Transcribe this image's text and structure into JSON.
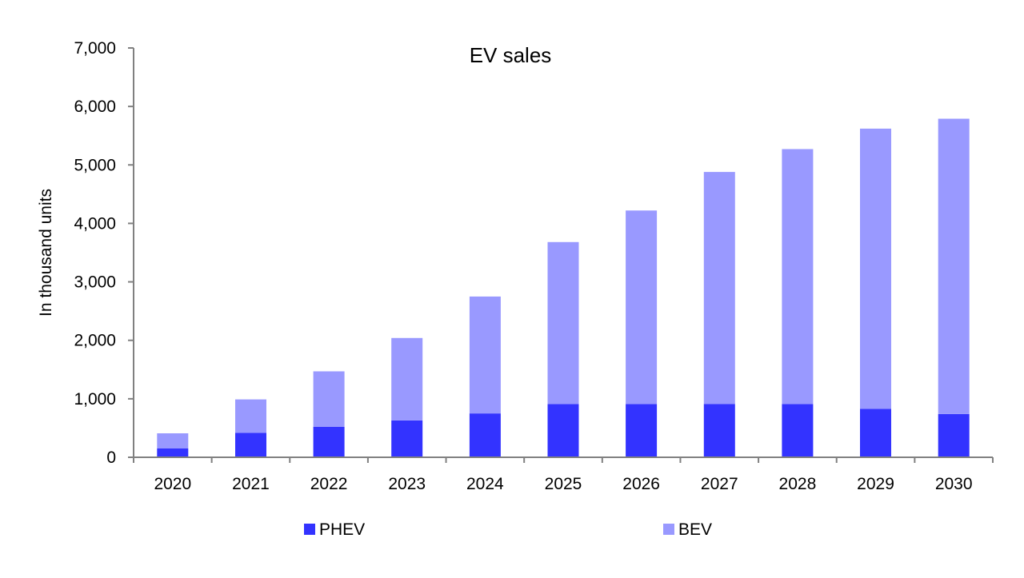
{
  "chart_data": {
    "type": "bar",
    "stacked": true,
    "title": "EV sales",
    "xlabel": "",
    "ylabel": "In thousand units",
    "ylim": [
      0,
      7000
    ],
    "yticks": [
      0,
      1000,
      2000,
      3000,
      4000,
      5000,
      6000,
      7000
    ],
    "ytick_labels": [
      "0",
      "1,000",
      "2,000",
      "3,000",
      "4,000",
      "5,000",
      "6,000",
      "7,000"
    ],
    "grid": false,
    "legend_position": "bottom",
    "categories": [
      "2020",
      "2021",
      "2022",
      "2023",
      "2024",
      "2025",
      "2026",
      "2027",
      "2028",
      "2029",
      "2030"
    ],
    "series": [
      {
        "name": "PHEV",
        "color": "#3333ff",
        "values": [
          150,
          420,
          520,
          630,
          750,
          910,
          910,
          910,
          910,
          830,
          740
        ]
      },
      {
        "name": "BEV",
        "color": "#9999ff",
        "values": [
          260,
          570,
          950,
          1410,
          2000,
          2770,
          3310,
          3970,
          4360,
          4790,
          5050
        ]
      }
    ]
  }
}
